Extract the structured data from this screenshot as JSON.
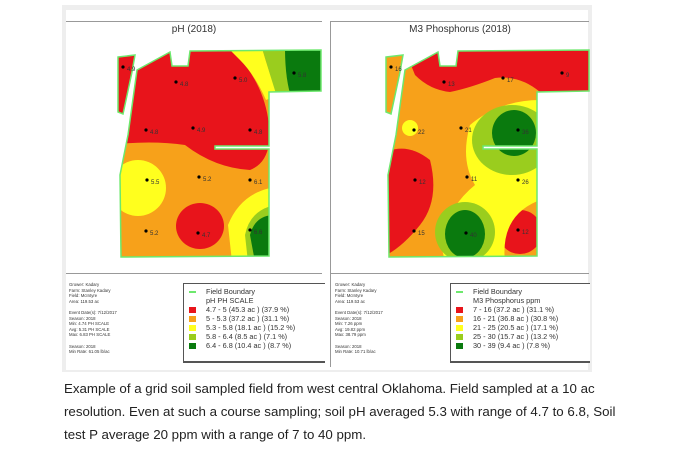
{
  "maps": [
    {
      "title": "pH (2018)",
      "info": [
        "Grower: Kadary",
        "Farm: Stanley Kadary",
        "Field: McIntyre",
        "Area: 119.53 ac",
        "",
        "Event Date(s): 7/12/2017",
        "Season: 2018",
        "Min: 4.74 PH SCALE",
        "Avg: 5.31 PH SCALE",
        "Max: 6.83 PH SCALE",
        "",
        "Season: 2018",
        "Min Rate: 61.05 lb/ac"
      ],
      "legend": {
        "boundary": "Field Boundary",
        "scale": "pH PH SCALE",
        "classes": [
          {
            "label": "4.7 - 5 (45.3 ac ) (37.9 %)",
            "color": "#e8141b"
          },
          {
            "label": "5 - 5.3 (37.2 ac ) (31.1 %)",
            "color": "#f7a11a"
          },
          {
            "label": "5.3 - 5.8 (18.1 ac ) (15.2 %)",
            "color": "#ffff1e"
          },
          {
            "label": "5.8 - 6.4 (8.5 ac ) (7.1 %)",
            "color": "#9acd1e"
          },
          {
            "label": "6.4 - 6.8 (10.4 ac ) (8.7 %)",
            "color": "#0a7a0e"
          }
        ]
      },
      "points": [
        "4.9",
        "4.8",
        "5.0",
        "5.8",
        "4.8",
        "4.9",
        "4.8",
        "5.5",
        "5.2",
        "6.1",
        "5.2",
        "4.7",
        "6.6"
      ]
    },
    {
      "title": "M3 Phosphorus (2018)",
      "info": [
        "Grower: Kadary",
        "Farm: Stanley Kadary",
        "Field: McIntyre",
        "Area: 119.53 ac",
        "",
        "Event Date(s): 7/12/2017",
        "Season: 2018",
        "Min: 7.26 ppm",
        "Avg: 19.82 ppm",
        "Max: 38.79 ppm",
        "",
        "Season: 2018",
        "Min Rate: 10.71 lb/ac"
      ],
      "legend": {
        "boundary": "Field Boundary",
        "scale": "M3 Phosphorus ppm",
        "classes": [
          {
            "label": "7 - 16 (37.2 ac ) (31.1 %)",
            "color": "#e8141b"
          },
          {
            "label": "16 - 21 (36.8 ac ) (30.8 %)",
            "color": "#f7a11a"
          },
          {
            "label": "21 - 25 (20.5 ac ) (17.1 %)",
            "color": "#ffff1e"
          },
          {
            "label": "25 - 30 (15.7 ac ) (13.2 %)",
            "color": "#9acd1e"
          },
          {
            "label": "30 - 39 (9.4 ac ) (7.8 %)",
            "color": "#0a7a0e"
          }
        ]
      },
      "points": [
        "16",
        "13",
        "17",
        "9",
        "22",
        "21",
        "36",
        "12",
        "11",
        "26",
        "15",
        "40",
        "12"
      ]
    }
  ],
  "caption": "Example of a grid soil sampled field from west central Oklahoma. Field sampled at a 10 ac resolution. Even at such a course sampling; soil pH averaged 5.3 with range of 4.7 to 6.8, Soil test P average 20 ppm with a range of 7 to 40 ppm."
}
